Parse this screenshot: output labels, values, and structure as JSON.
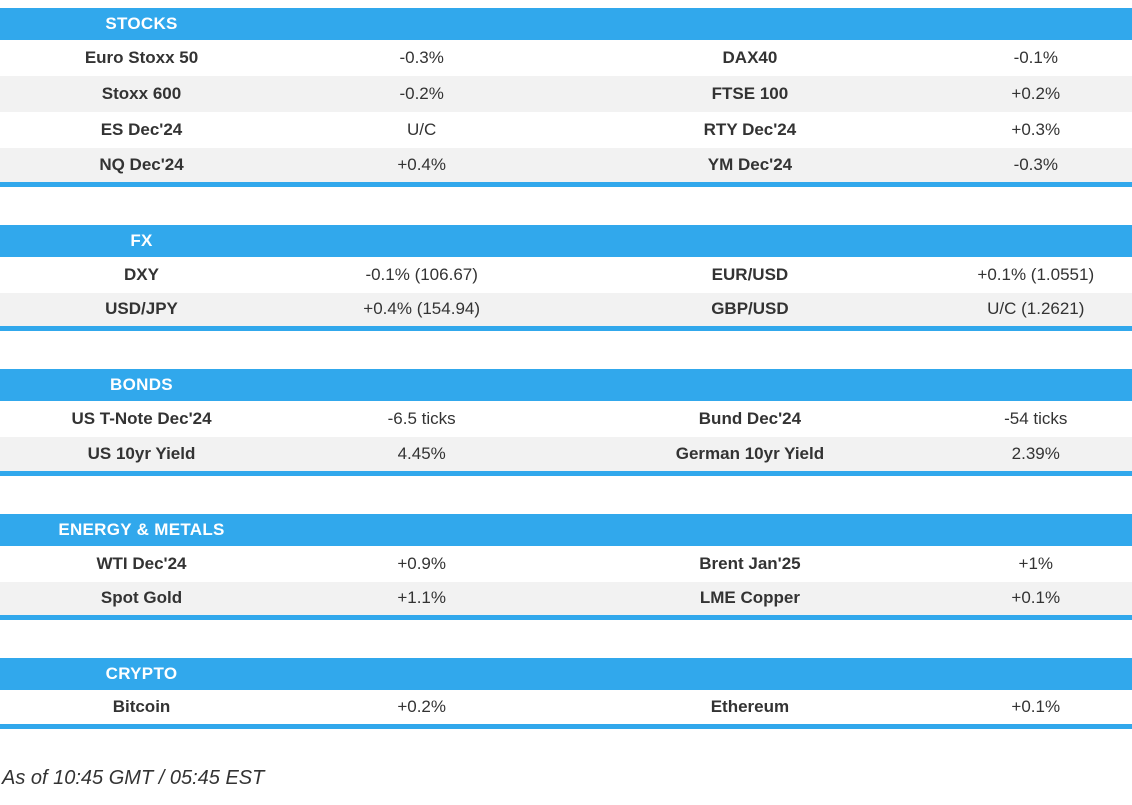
{
  "colors": {
    "accent": "#31a8ec",
    "row_alt": "#f2f2f2",
    "text": "#333333",
    "header_text": "#ffffff"
  },
  "chart_data": [
    {
      "type": "table",
      "title": "STOCKS",
      "rows": [
        [
          "Euro Stoxx 50",
          "-0.3%",
          "DAX40",
          "-0.1%"
        ],
        [
          "Stoxx 600",
          "-0.2%",
          "FTSE 100",
          "+0.2%"
        ],
        [
          "ES Dec'24",
          "U/C",
          "RTY Dec'24",
          "+0.3%"
        ],
        [
          "NQ Dec'24",
          "+0.4%",
          "YM Dec'24",
          "-0.3%"
        ]
      ]
    },
    {
      "type": "table",
      "title": "FX",
      "rows": [
        [
          "DXY",
          "-0.1% (106.67)",
          "EUR/USD",
          "+0.1% (1.0551)"
        ],
        [
          "USD/JPY",
          "+0.4% (154.94)",
          "GBP/USD",
          "U/C (1.2621)"
        ]
      ]
    },
    {
      "type": "table",
      "title": "BONDS",
      "rows": [
        [
          "US T-Note Dec'24",
          "-6.5 ticks",
          "Bund Dec'24",
          "-54 ticks"
        ],
        [
          "US 10yr Yield",
          "4.45%",
          "German 10yr Yield",
          "2.39%"
        ]
      ]
    },
    {
      "type": "table",
      "title": "ENERGY & METALS",
      "rows": [
        [
          "WTI Dec'24",
          "+0.9%",
          "Brent Jan'25",
          "+1%"
        ],
        [
          "Spot Gold",
          "+1.1%",
          "LME Copper",
          "+0.1%"
        ]
      ]
    },
    {
      "type": "table",
      "title": "CRYPTO",
      "rows": [
        [
          "Bitcoin",
          "+0.2%",
          "Ethereum",
          "+0.1%"
        ]
      ]
    }
  ],
  "footer": {
    "as_of": "As of 10:45 GMT / 05:45 EST"
  }
}
